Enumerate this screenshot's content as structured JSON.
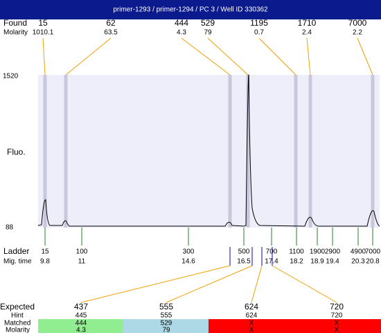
{
  "header": {
    "title": "primer-1293 / primer-1294 / PC 3 / Well ID 330362"
  },
  "found": {
    "label": "Found",
    "molarity_label": "Molarity",
    "peaks": [
      {
        "size": 15,
        "molarity": 1010.1
      },
      {
        "size": 62,
        "molarity": 63.5
      },
      {
        "size": 444,
        "molarity": 4.3
      },
      {
        "size": 529,
        "molarity": 79
      },
      {
        "size": 1195,
        "molarity": 0.7
      },
      {
        "size": 1710,
        "molarity": 2.4
      },
      {
        "size": 7000,
        "molarity": 2.2
      }
    ]
  },
  "plot": {
    "y_label": "Fluo.",
    "y_max": 1520,
    "y_min": 88
  },
  "ladder": {
    "label": "Ladder",
    "mig_label": "Mig. time",
    "bands": [
      {
        "size": 15,
        "time": 9.8
      },
      {
        "size": 100,
        "time": 11
      },
      {
        "size": 300,
        "time": 14.6
      },
      {
        "size": 500,
        "time": 16.5
      },
      {
        "size": 700,
        "time": 17.4
      },
      {
        "size": 1100,
        "time": 18.2
      },
      {
        "size": 1900,
        "time": 18.9
      },
      {
        "size": 2900,
        "time": 19.4
      },
      {
        "size": 4900,
        "time": 20.3
      },
      {
        "size": 7000,
        "time": 20.8
      }
    ]
  },
  "expected": {
    "label": "Expected",
    "hint_label": "Hint",
    "matched_label": "Matched",
    "molarity_label": "Molarity",
    "rows": [
      {
        "expected": 437,
        "hint": 445,
        "matched": 444,
        "molarity": 4.3
      },
      {
        "expected": 555,
        "hint": 555,
        "matched": 529,
        "molarity": 79
      },
      {
        "expected": 624,
        "hint": 624,
        "matched": "X",
        "molarity": "X"
      },
      {
        "expected": 720,
        "hint": 720,
        "matched": "X",
        "molarity": "X"
      }
    ]
  }
}
